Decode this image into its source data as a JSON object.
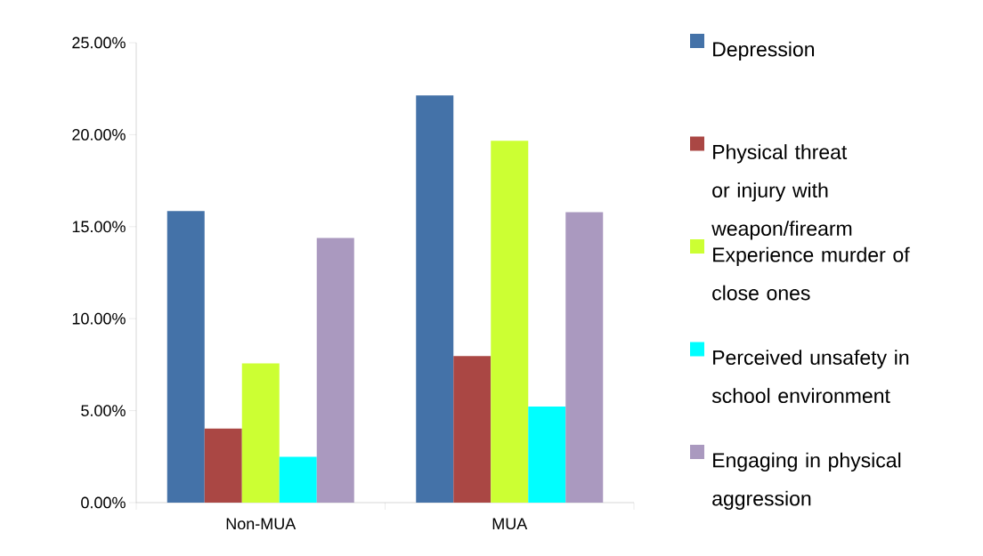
{
  "chart_data": {
    "type": "bar",
    "categories": [
      "Non-MUA",
      "MUA"
    ],
    "series": [
      {
        "name": "Depression",
        "color": "#4472a8",
        "values": [
          15.85,
          22.13
        ]
      },
      {
        "name": "Physical threat or injury with weapon/firearm",
        "color": "#aa4744",
        "values": [
          4.02,
          7.97
        ]
      },
      {
        "name": "Experience murder of close ones",
        "color": "#ccff33",
        "values": [
          7.57,
          19.67
        ]
      },
      {
        "name": "Perceived unsafety in school environment",
        "color": "#00ffff",
        "values": [
          2.49,
          5.22
        ]
      },
      {
        "name": "Engaging in physical aggression",
        "color": "#aa99bf",
        "values": [
          14.39,
          15.79
        ]
      }
    ],
    "ylim": [
      0,
      25
    ],
    "yticks": [
      {
        "value": 0,
        "label": "0.00%"
      },
      {
        "value": 5,
        "label": "5.00%"
      },
      {
        "value": 10,
        "label": "10.00%"
      },
      {
        "value": 15,
        "label": "15.00%"
      },
      {
        "value": 20,
        "label": "20.00%"
      },
      {
        "value": 25,
        "label": "25.00%"
      }
    ],
    "grid": false,
    "legend": "right"
  }
}
